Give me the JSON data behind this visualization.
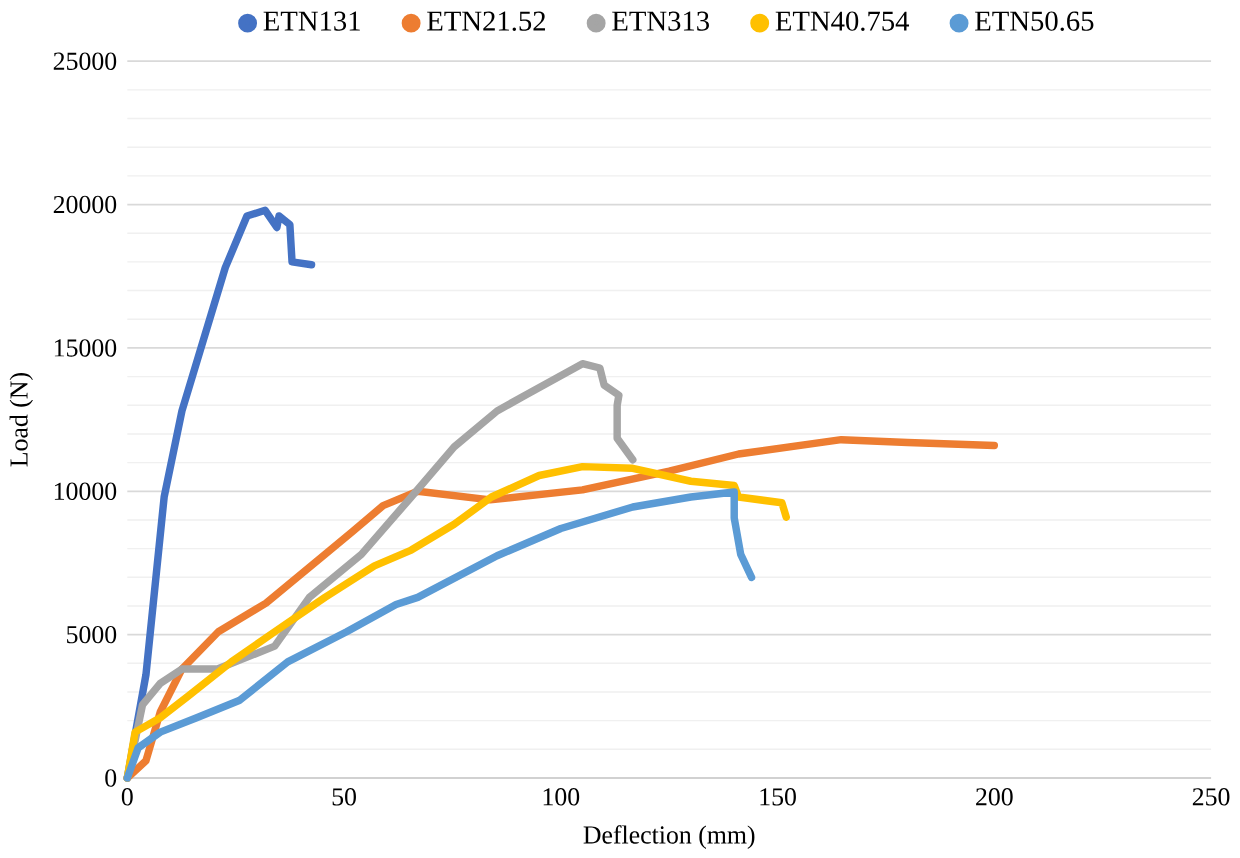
{
  "chart_data": {
    "type": "line",
    "xlabel": "Deflection (mm)",
    "ylabel": "Load (N)",
    "xlim": [
      0,
      250
    ],
    "ylim": [
      0,
      25000
    ],
    "xticks": [
      0,
      50,
      100,
      150,
      200,
      250
    ],
    "yticks": [
      0,
      5000,
      10000,
      15000,
      20000,
      25000
    ],
    "grid": "y",
    "legend": "top",
    "line_style": "solid",
    "series": [
      {
        "name": "ETN131",
        "color": "#4472c4",
        "x": [
          0,
          4.3,
          8.5,
          12.6,
          17.6,
          22.6,
          27.6,
          31.8,
          34.5,
          35,
          37.5,
          38,
          42.5
        ],
        "values": [
          0,
          3600,
          9800,
          12800,
          15300,
          17800,
          19600,
          19800,
          19200,
          19600,
          19300,
          18000,
          17900
        ]
      },
      {
        "name": "ETN21.52",
        "color": "#ed7d31",
        "x": [
          0,
          4.3,
          7.6,
          12.6,
          21,
          32,
          45.6,
          52,
          59,
          67,
          83.7,
          105,
          125,
          141,
          164.7,
          180,
          200
        ],
        "values": [
          0,
          600,
          2300,
          3800,
          5100,
          6100,
          7800,
          8600,
          9500,
          10000,
          9700,
          10050,
          10700,
          11300,
          11800,
          11700,
          11600
        ]
      },
      {
        "name": "ETN313",
        "color": "#a5a5a5",
        "x": [
          0,
          3.5,
          7.6,
          12.6,
          20.8,
          34,
          42,
          54,
          65.5,
          75.4,
          85.3,
          91.8,
          105,
          109,
          110,
          113.4,
          113,
          113,
          116.6
        ],
        "values": [
          0,
          2550,
          3300,
          3800,
          3800,
          4600,
          6300,
          7800,
          9800,
          11550,
          12800,
          13350,
          14450,
          14300,
          13700,
          13350,
          13000,
          11850,
          11100
        ]
      },
      {
        "name": "ETN40.754",
        "color": "#ffc000",
        "x": [
          0,
          1.8,
          7.6,
          14,
          24,
          34,
          45.6,
          57,
          65.5,
          75.4,
          84,
          95,
          105,
          116.6,
          130,
          140,
          141,
          151,
          152
        ],
        "values": [
          0,
          1600,
          2100,
          2850,
          4050,
          5100,
          6300,
          7400,
          7950,
          8850,
          9800,
          10550,
          10860,
          10800,
          10350,
          10200,
          9800,
          9600,
          9100
        ]
      },
      {
        "name": "ETN50.65",
        "color": "#5b9bd5",
        "x": [
          0,
          2.5,
          7.6,
          16,
          25.8,
          37,
          50.6,
          62,
          67,
          85.3,
          100,
          116.6,
          130,
          140,
          140,
          141.5,
          144
        ],
        "values": [
          0,
          1050,
          1600,
          2100,
          2700,
          4050,
          5100,
          6050,
          6300,
          7750,
          8700,
          9450,
          9800,
          9975,
          9075,
          7800,
          7000
        ]
      }
    ]
  }
}
